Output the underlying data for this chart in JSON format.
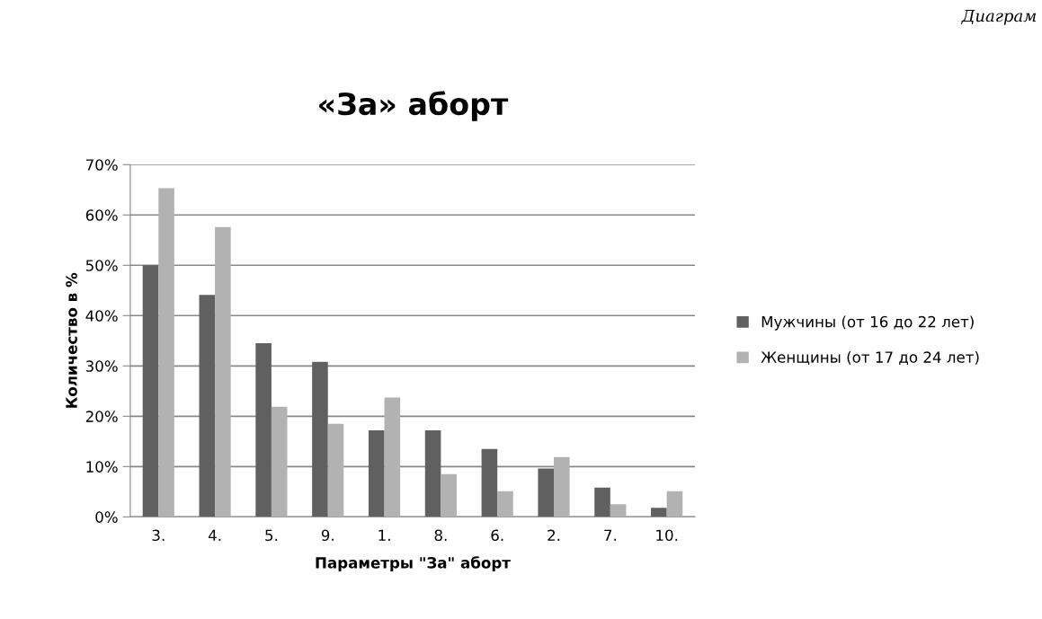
{
  "chart_data": {
    "type": "bar",
    "title": "«За» аборт",
    "xlabel": "Параметры \"За\" аборт",
    "ylabel": "Количество в %",
    "categories": [
      "3.",
      "4.",
      "5.",
      "9.",
      "1.",
      "8.",
      "6.",
      "2.",
      "7.",
      "10."
    ],
    "series": [
      {
        "name": "Мужчины (от 16 до 22 лет)",
        "color": "#606060",
        "values": [
          50.0,
          44.1,
          34.5,
          30.8,
          17.2,
          17.2,
          13.5,
          9.6,
          5.8,
          1.8
        ]
      },
      {
        "name": "Женщины (от 17 до 24 лет)",
        "color": "#b2b2b2",
        "values": [
          65.3,
          57.6,
          21.9,
          18.5,
          23.7,
          8.5,
          5.1,
          11.9,
          2.5,
          5.1
        ]
      }
    ],
    "ylim": [
      0,
      70
    ],
    "yticks": [
      {
        "value": 0,
        "label": "0%"
      },
      {
        "value": 10,
        "label": "10%"
      },
      {
        "value": 20,
        "label": "20%"
      },
      {
        "value": 30,
        "label": "30%"
      },
      {
        "value": 40,
        "label": "40%"
      },
      {
        "value": 50,
        "label": "50%"
      },
      {
        "value": 60,
        "label": "60%"
      },
      {
        "value": 70,
        "label": "70%"
      }
    ],
    "grid": "y",
    "legend": "right",
    "annotations": [
      "Диаграм"
    ]
  }
}
